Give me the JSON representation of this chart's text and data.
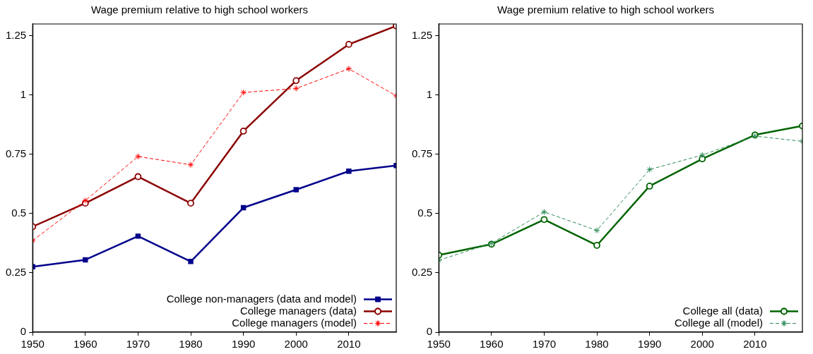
{
  "chart_data": [
    {
      "type": "line",
      "title": "Wage premium relative to high school workers",
      "x": [
        1950,
        1960,
        1970,
        1980,
        1990,
        2000,
        2010,
        2019
      ],
      "xlim": [
        1950,
        2019
      ],
      "xticks": [
        1950,
        1960,
        1970,
        1980,
        1990,
        2000,
        2010
      ],
      "ylim": [
        0,
        1.3
      ],
      "yticks": [
        0,
        0.25,
        0.5,
        0.75,
        1,
        1.25
      ],
      "grid": false,
      "legend": "bottom right",
      "series": [
        {
          "name": "College non-managers (data and model)",
          "color": "#00008b",
          "marker": "square",
          "line_style": "solid",
          "values": [
            0.276,
            0.305,
            0.405,
            0.298,
            0.525,
            0.601,
            0.679,
            0.703
          ]
        },
        {
          "name": "College managers (data)",
          "color": "#8b0000",
          "marker": "circle",
          "line_style": "solid",
          "values": [
            0.445,
            0.544,
            0.656,
            0.544,
            0.848,
            1.061,
            1.214,
            1.292
          ]
        },
        {
          "name": "College managers (model)",
          "color": "#ff0000",
          "marker": "cross",
          "line_style": "dashed",
          "values": [
            0.386,
            0.555,
            0.741,
            0.706,
            1.011,
            1.028,
            1.111,
            0.997
          ]
        }
      ]
    },
    {
      "type": "line",
      "title": "Wage premium relative to high school workers",
      "x": [
        1950,
        1960,
        1970,
        1980,
        1990,
        2000,
        2010,
        2019
      ],
      "xlim": [
        1950,
        2019
      ],
      "xticks": [
        1950,
        1960,
        1970,
        1980,
        1990,
        2000,
        2010
      ],
      "ylim": [
        0,
        1.3
      ],
      "yticks": [
        0,
        0.25,
        0.5,
        0.75,
        1,
        1.25
      ],
      "grid": false,
      "legend": "bottom right",
      "series": [
        {
          "name": "College all (data)",
          "color": "#006400",
          "marker": "circle",
          "line_style": "solid",
          "values": [
            0.325,
            0.371,
            0.475,
            0.366,
            0.616,
            0.731,
            0.832,
            0.87
          ]
        },
        {
          "name": "College all (model)",
          "color": "#2e8b57",
          "marker": "cross",
          "line_style": "dashed",
          "values": [
            0.303,
            0.375,
            0.507,
            0.429,
            0.686,
            0.747,
            0.827,
            0.805
          ]
        }
      ]
    }
  ]
}
